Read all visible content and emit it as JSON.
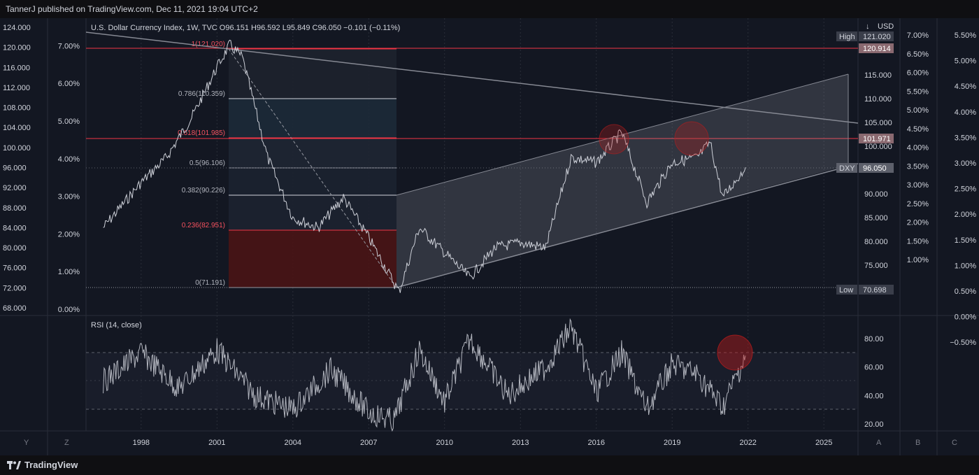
{
  "header": {
    "published": "TannerJ published on TradingView.com, Dec 11, 2021 19:04 UTC+2"
  },
  "footer": {
    "brand": "TradingView"
  },
  "legend": {
    "main": "U.S. Dollar Currency Index, 1W, TVC  O96.151  H96.592  L95.849  C96.050  −0.101 (−0.11%)",
    "rsi": "RSI (14, close)"
  },
  "price_axis": {
    "currency": "USD",
    "menu_icon": "dropdown-icon",
    "high_tag": "High",
    "high_value": "121.020",
    "line_value": "120.914",
    "fib_value": "101.971",
    "symbol_tag": "DXY",
    "last_value": "96.050",
    "low_tag": "Low",
    "low_value": "70.698"
  },
  "buttons": {
    "y": "Y",
    "z": "Z",
    "a": "A",
    "b": "B",
    "c": "C"
  },
  "colors": {
    "background": "#131722",
    "price_line": "#cdd0d8",
    "fib_red": "#f23645",
    "fib_levels": "#9598a1",
    "channel": "#868993",
    "circle": "#b71c1c"
  },
  "chart_data": [
    {
      "type": "line",
      "title": "U.S. Dollar Currency Index, 1W, TVC",
      "ohlc": {
        "open": 96.151,
        "high": 96.592,
        "low": 95.849,
        "close": 96.05,
        "change": -0.101,
        "change_pct": -0.11
      },
      "x": [
        1996.5,
        1998,
        1999,
        2000,
        2001,
        2001.5,
        2002,
        2003,
        2004,
        2005,
        2006,
        2007,
        2008.2,
        2009,
        2010,
        2011,
        2012,
        2013,
        2014,
        2015,
        2016,
        2017,
        2018,
        2019,
        2020,
        2020.5,
        2021,
        2021.9
      ],
      "y": [
        84,
        93,
        98,
        106,
        116,
        120.5,
        118,
        98,
        86,
        84,
        90,
        82,
        71.2,
        84,
        79,
        74,
        80,
        81,
        80,
        98,
        97,
        103,
        89,
        97,
        98,
        101,
        90,
        96.05
      ],
      "x_ticks": [
        "1998",
        "2001",
        "2004",
        "2007",
        "2010",
        "2013",
        "2016",
        "2019",
        "2022",
        "2025"
      ],
      "left_ticks": [
        "124.000",
        "120.000",
        "116.000",
        "112.000",
        "108.000",
        "104.000",
        "100.000",
        "96.000",
        "92.000",
        "88.000",
        "84.000",
        "80.000",
        "76.000",
        "72.000",
        "68.000"
      ],
      "left_pct_ticks": [
        "7.00%",
        "6.00%",
        "5.00%",
        "4.00%",
        "3.00%",
        "2.00%",
        "1.00%",
        "0.00%"
      ],
      "right_ticks": [
        "115.000",
        "110.000",
        "105.000",
        "100.000",
        "95.000",
        "90.000",
        "85.000",
        "80.000",
        "75.000"
      ],
      "right_pct_ticks_1": [
        "7.00%",
        "6.50%",
        "6.00%",
        "5.50%",
        "5.00%",
        "4.50%",
        "4.00%",
        "3.50%",
        "3.00%",
        "2.50%",
        "2.00%",
        "1.50%",
        "1.00%"
      ],
      "right_pct_ticks_2": [
        "5.50%",
        "5.00%",
        "4.50%",
        "4.00%",
        "3.50%",
        "3.00%",
        "2.50%",
        "2.00%",
        "1.50%",
        "1.00%",
        "0.50%",
        "0.00%",
        "−0.50%"
      ],
      "ylim": [
        66,
        125
      ],
      "fib_levels": [
        {
          "ratio": "1",
          "price": 121.02,
          "label": "1(121.020)"
        },
        {
          "ratio": "0.786",
          "price": 110.359,
          "label": "0.786(110.359)"
        },
        {
          "ratio": "0.618",
          "price": 101.985,
          "label": "0.618(101.985)"
        },
        {
          "ratio": "0.5",
          "price": 96.106,
          "label": "0.5(96.106)"
        },
        {
          "ratio": "0.382",
          "price": 90.226,
          "label": "0.382(90.226)"
        },
        {
          "ratio": "0.236",
          "price": 82.951,
          "label": "0.236(82.951)"
        },
        {
          "ratio": "0",
          "price": 71.191,
          "label": "0(71.191)"
        }
      ],
      "grid": true
    },
    {
      "type": "line",
      "title": "RSI (14, close)",
      "y_ticks": [
        "80.00",
        "60.00",
        "40.00",
        "20.00"
      ],
      "ylim": [
        15,
        95
      ],
      "bands": [
        30,
        50,
        70
      ],
      "x": [
        1996.5,
        1998,
        1999.5,
        2001,
        2002.5,
        2004,
        2005.5,
        2007,
        2008,
        2009,
        2010,
        2011,
        2012.5,
        2014,
        2015,
        2016,
        2017,
        2018,
        2019,
        2020,
        2021,
        2021.9
      ],
      "y": [
        50,
        70,
        45,
        72,
        40,
        30,
        58,
        28,
        22,
        72,
        35,
        80,
        40,
        60,
        88,
        42,
        70,
        30,
        62,
        55,
        32,
        68
      ]
    }
  ]
}
